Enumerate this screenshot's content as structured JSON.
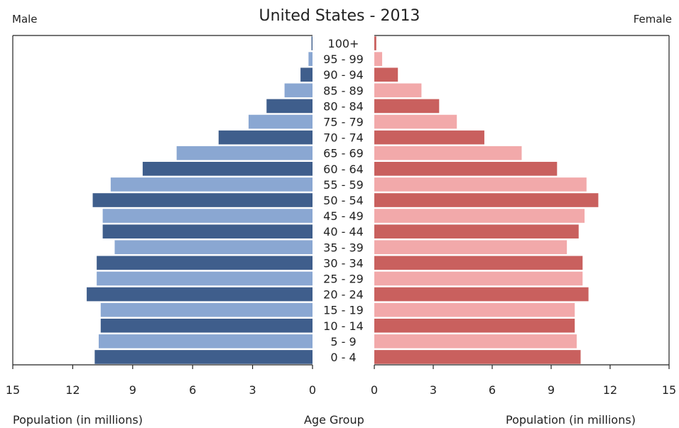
{
  "chart_data": {
    "type": "bar",
    "title": "United States - 2013",
    "left_label": "Male",
    "right_label": "Female",
    "xlabel_left": "Population (in millions)",
    "xlabel_center": "Age Group",
    "xlabel_right": "Population (in millions)",
    "categories": [
      "0 - 4",
      "5 - 9",
      "10 - 14",
      "15 - 19",
      "20 - 24",
      "25 - 29",
      "30 - 34",
      "35 - 39",
      "40 - 44",
      "45 - 49",
      "50 - 54",
      "55 - 59",
      "60 - 64",
      "65 - 69",
      "70 - 74",
      "75 - 79",
      "80 - 84",
      "85 - 89",
      "90 - 94",
      "95 - 99",
      "100+"
    ],
    "series": [
      {
        "name": "Male",
        "values": [
          10.9,
          10.7,
          10.6,
          10.6,
          11.3,
          10.8,
          10.8,
          9.9,
          10.5,
          10.5,
          11.0,
          10.1,
          8.5,
          6.8,
          4.7,
          3.2,
          2.3,
          1.4,
          0.6,
          0.2,
          0.05
        ]
      },
      {
        "name": "Female",
        "values": [
          10.5,
          10.3,
          10.2,
          10.2,
          10.9,
          10.6,
          10.6,
          9.8,
          10.4,
          10.7,
          11.4,
          10.8,
          9.3,
          7.5,
          5.6,
          4.2,
          3.3,
          2.4,
          1.2,
          0.4,
          0.1
        ]
      }
    ],
    "xlim": [
      0,
      15
    ],
    "xticks": [
      "0",
      "3",
      "6",
      "9",
      "12",
      "15"
    ],
    "colors": {
      "male_dark": "#3f5e8c",
      "male_light": "#8aa7d2",
      "female_dark": "#c9605e",
      "female_light": "#f2a9aa"
    }
  }
}
